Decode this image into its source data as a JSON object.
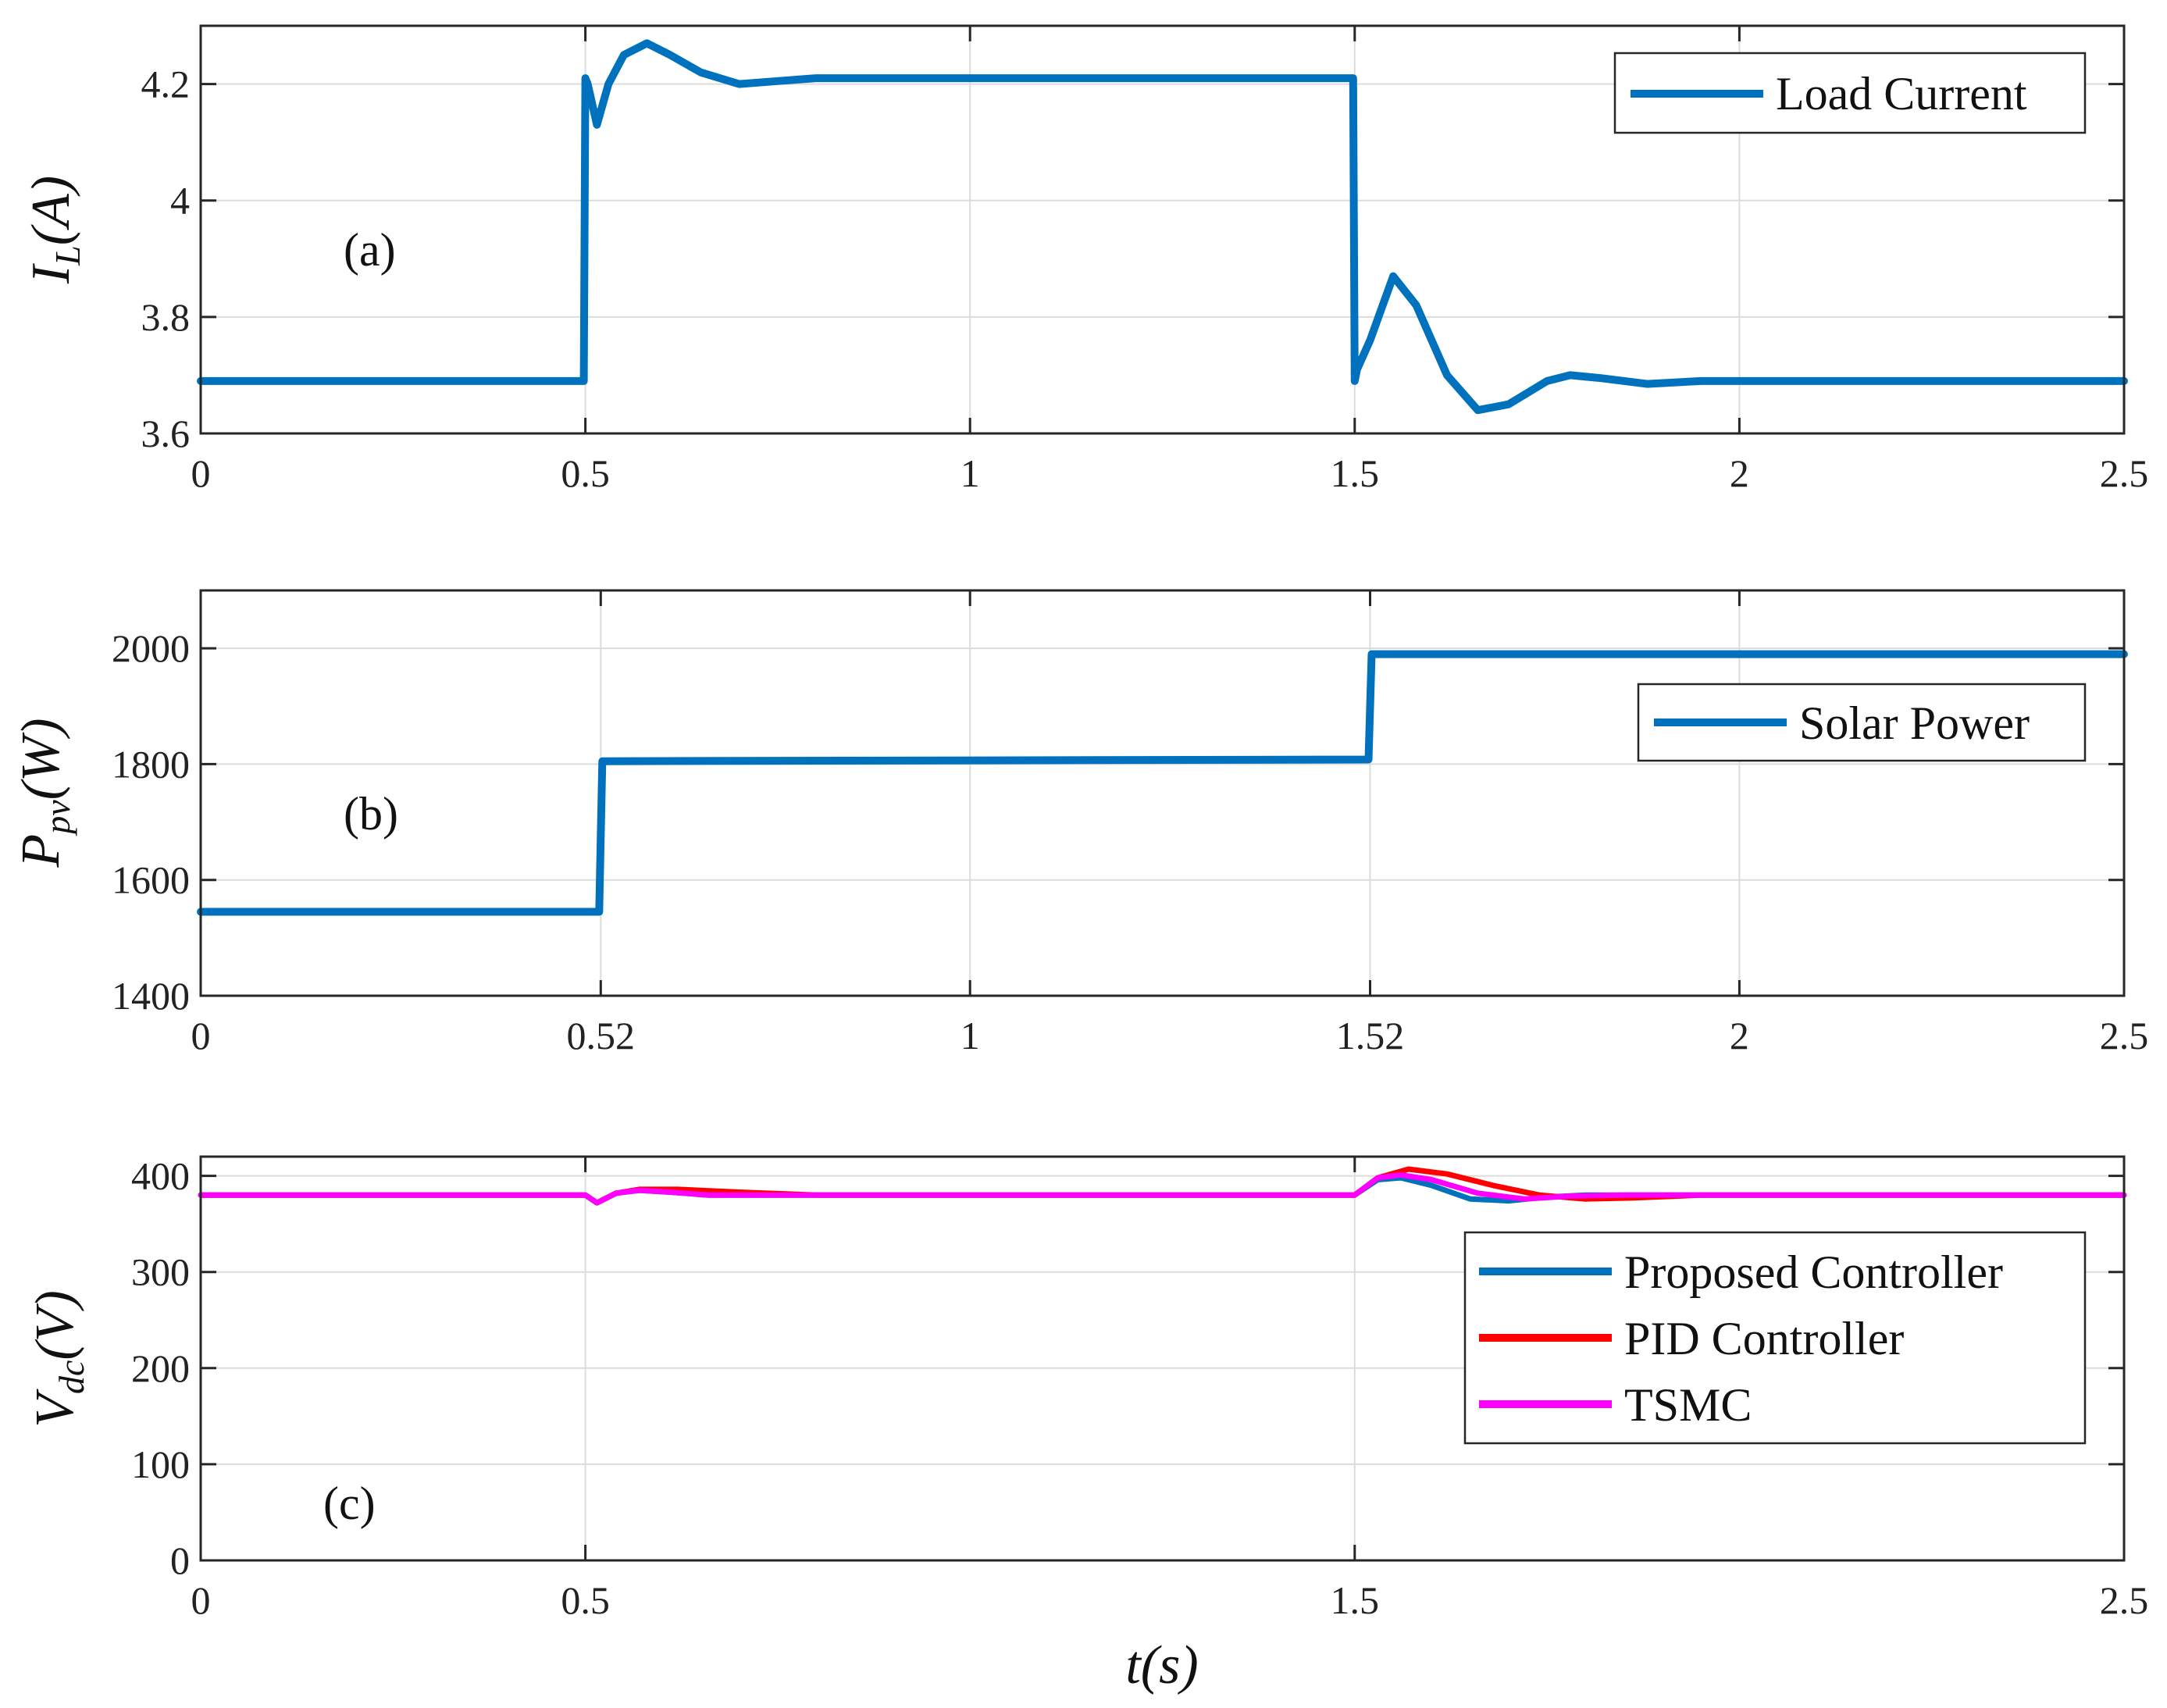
{
  "chart_data": [
    {
      "id": "a",
      "type": "line",
      "panel_label": "(a)",
      "ylabel_main": "I",
      "ylabel_sub": "L",
      "ylabel_rest": "(A)",
      "xlim": [
        0,
        2.5
      ],
      "ylim": [
        3.6,
        4.3
      ],
      "xticks": [
        0,
        0.5,
        1,
        1.5,
        2,
        2.5
      ],
      "xtick_labels": [
        "0",
        "0.5",
        "1",
        "1.5",
        "2",
        "2.5"
      ],
      "yticks": [
        3.6,
        3.8,
        4,
        4.2
      ],
      "ytick_labels": [
        "3.6",
        "3.8",
        "4",
        "4.2"
      ],
      "grid": true,
      "legend_position": "top-right",
      "series": [
        {
          "name": "Load Current",
          "color": "#0072BD",
          "x": [
            0,
            0.498,
            0.5,
            0.503,
            0.515,
            0.53,
            0.55,
            0.58,
            0.61,
            0.65,
            0.7,
            0.75,
            0.8,
            0.9,
            1.0,
            1.2,
            1.498,
            1.5,
            1.503,
            1.52,
            1.55,
            1.58,
            1.62,
            1.66,
            1.7,
            1.75,
            1.78,
            1.82,
            1.88,
            1.95,
            2.0,
            2.5
          ],
          "y": [
            3.69,
            3.69,
            4.21,
            4.2,
            4.13,
            4.2,
            4.25,
            4.27,
            4.25,
            4.22,
            4.2,
            4.205,
            4.21,
            4.21,
            4.21,
            4.21,
            4.21,
            3.69,
            3.71,
            3.76,
            3.87,
            3.82,
            3.7,
            3.64,
            3.65,
            3.69,
            3.7,
            3.695,
            3.685,
            3.69,
            3.69,
            3.69
          ]
        }
      ]
    },
    {
      "id": "b",
      "type": "line",
      "panel_label": "(b)",
      "ylabel_main": "P",
      "ylabel_sub": "pv",
      "ylabel_rest": "(W)",
      "xlim": [
        0,
        2.5
      ],
      "ylim": [
        1400,
        2100
      ],
      "xticks": [
        0,
        0.52,
        1,
        1.52,
        2,
        2.5
      ],
      "xtick_labels": [
        "0",
        "0.52",
        "1",
        "1.52",
        "2",
        "2.5"
      ],
      "yticks": [
        1400,
        1600,
        1800,
        2000
      ],
      "ytick_labels": [
        "1400",
        "1600",
        "1800",
        "2000"
      ],
      "grid": true,
      "legend_position": "upper-right",
      "series": [
        {
          "name": "Solar Power",
          "color": "#0072BD",
          "x": [
            0,
            0.518,
            0.522,
            1.518,
            1.522,
            2.5
          ],
          "y": [
            1545,
            1545,
            1805,
            1808,
            1990,
            1990
          ]
        }
      ]
    },
    {
      "id": "c",
      "type": "line",
      "panel_label": "(c)",
      "ylabel_main": "V",
      "ylabel_sub": "dc",
      "ylabel_rest": "(V)",
      "xlabel": "t(s)",
      "xlim": [
        0,
        2.5
      ],
      "ylim": [
        0,
        420
      ],
      "xticks": [
        0,
        0.5,
        1.5,
        2.5
      ],
      "xtick_labels": [
        "0",
        "0.5",
        "1.5",
        "2.5"
      ],
      "yticks": [
        0,
        100,
        200,
        300,
        400
      ],
      "ytick_labels": [
        "0",
        "100",
        "200",
        "300",
        "400"
      ],
      "grid": true,
      "legend_position": "right",
      "series": [
        {
          "name": "Proposed Controller",
          "color": "#0072BD",
          "x": [
            0,
            0.5,
            0.515,
            0.54,
            0.57,
            0.61,
            0.66,
            0.72,
            1.0,
            1.5,
            1.53,
            1.56,
            1.6,
            1.65,
            1.7,
            1.75,
            1.8,
            2.5
          ],
          "y": [
            380,
            380,
            372,
            382,
            385,
            383,
            380,
            380,
            380,
            380,
            396,
            398,
            390,
            376,
            374,
            378,
            380,
            380
          ]
        },
        {
          "name": "PID Controller",
          "color": "#FF0000",
          "x": [
            0,
            0.5,
            0.515,
            0.54,
            0.57,
            0.62,
            0.7,
            0.8,
            1.0,
            1.5,
            1.53,
            1.57,
            1.62,
            1.68,
            1.74,
            1.8,
            1.86,
            1.95,
            2.5
          ],
          "y": [
            380,
            380,
            372,
            382,
            386,
            386,
            383,
            380,
            380,
            380,
            398,
            407,
            402,
            390,
            380,
            376,
            377,
            380,
            380
          ]
        },
        {
          "name": "TSMC",
          "color": "#FF00FF",
          "x": [
            0,
            0.5,
            0.515,
            0.54,
            0.57,
            0.61,
            0.66,
            0.72,
            1.0,
            1.5,
            1.53,
            1.56,
            1.6,
            1.66,
            1.72,
            1.78,
            1.85,
            2.5
          ],
          "y": [
            380,
            380,
            372,
            382,
            385,
            383,
            380,
            380,
            380,
            380,
            398,
            401,
            396,
            382,
            376,
            379,
            380,
            380
          ]
        }
      ]
    }
  ]
}
